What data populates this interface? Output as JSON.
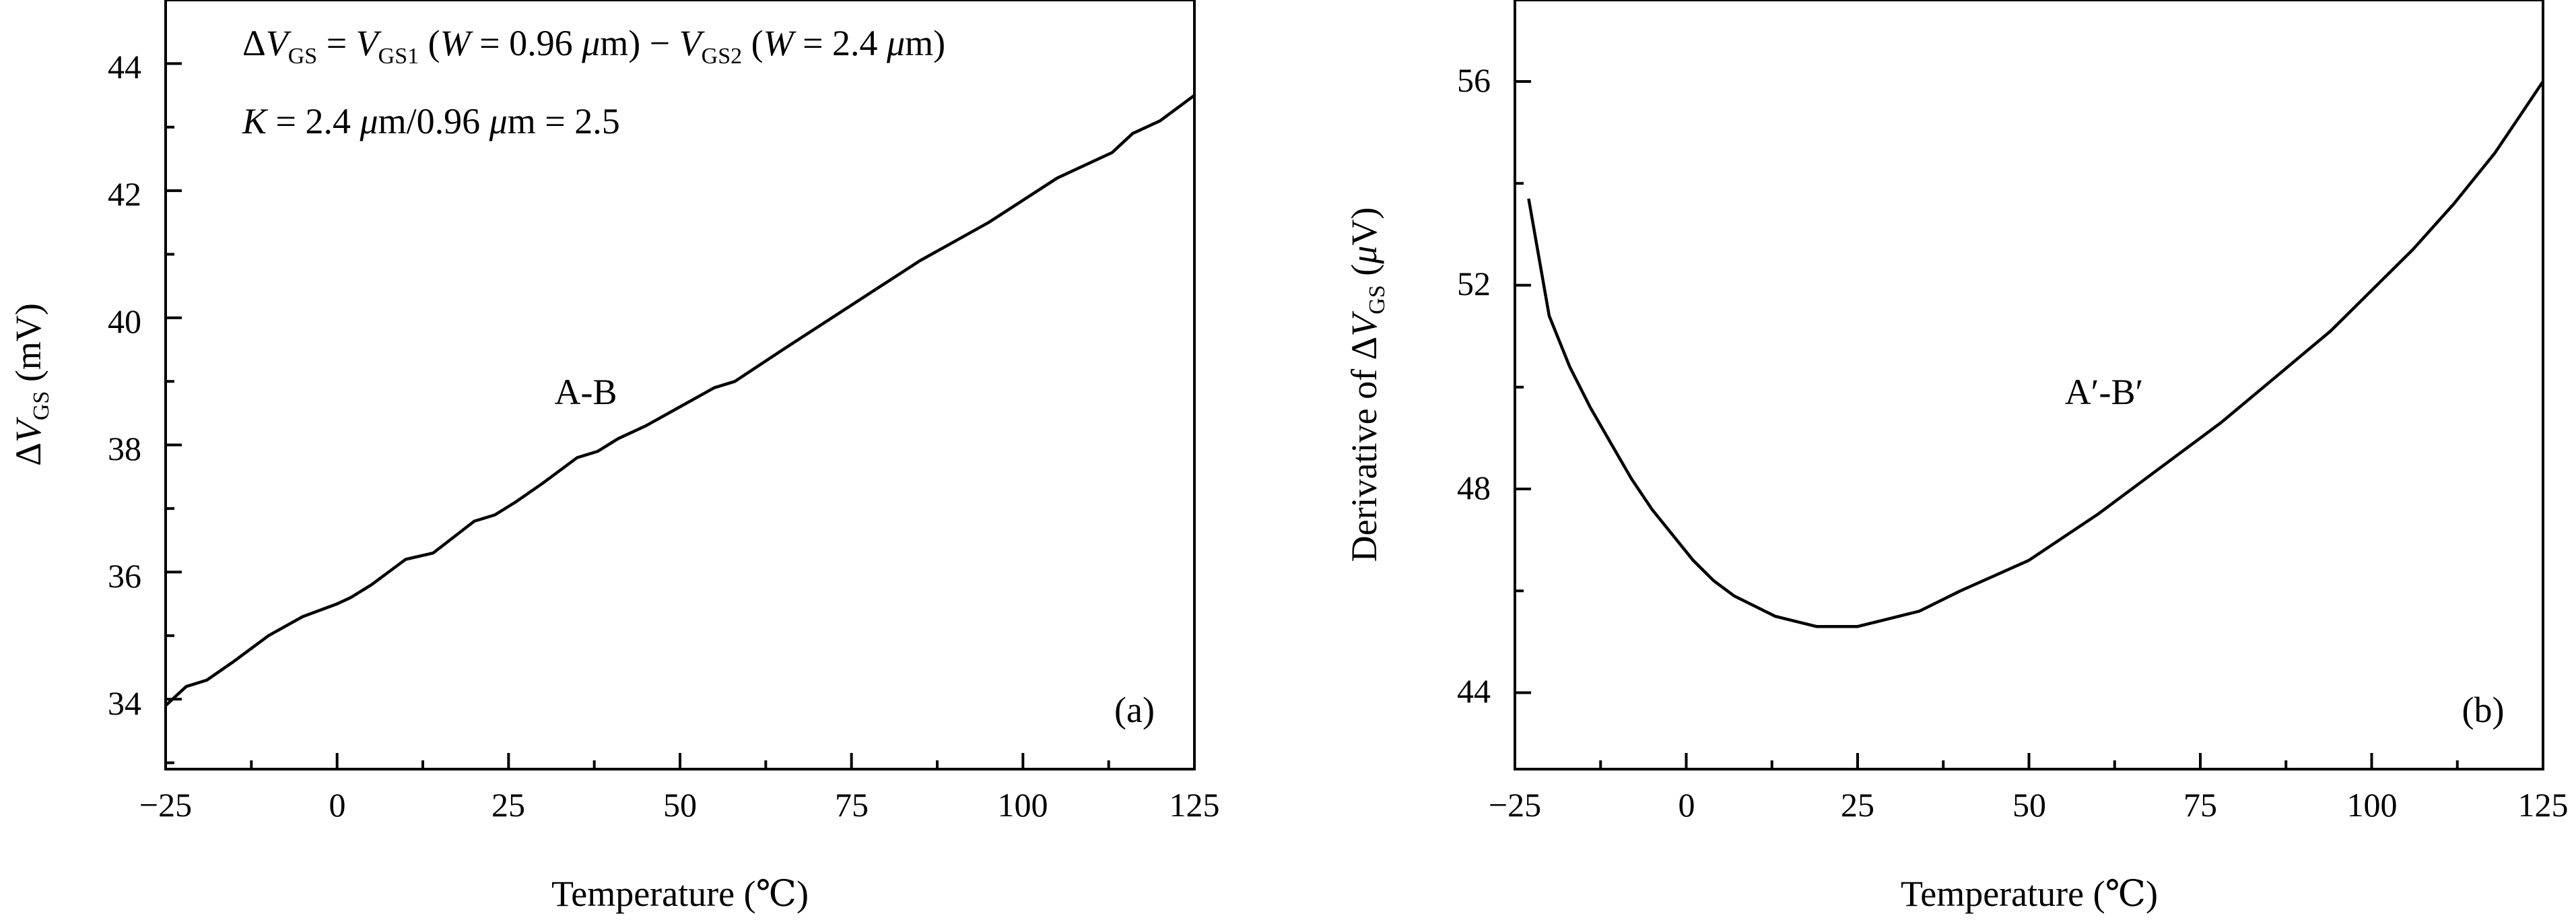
{
  "chart_data": [
    {
      "type": "line",
      "panel_label": "(a)",
      "ylabel": "ΔVGS (mV)",
      "xlabel": "Temperature (℃)",
      "xlim": [
        -25,
        125
      ],
      "ylim": [
        32.9,
        45.0
      ],
      "xticks": [
        -25,
        0,
        25,
        50,
        75,
        100,
        125
      ],
      "yticks": [
        34,
        36,
        38,
        40,
        42,
        44
      ],
      "annotations": [
        "ΔVGS = VGS1 (W = 0.96 μm) − VGS2 (W = 2.4 μm)",
        "K = 2.4 μm/0.96 μm = 2.5"
      ],
      "series": [
        {
          "name": "A-B",
          "x": [
            -25,
            -22,
            -19,
            -15,
            -10,
            -5,
            0,
            2,
            5,
            10,
            14,
            20,
            23,
            26,
            30,
            35,
            38,
            41,
            45,
            50,
            55,
            58,
            65,
            75,
            85,
            95,
            105,
            113,
            116,
            120,
            125
          ],
          "y": [
            33.9,
            34.2,
            34.3,
            34.6,
            35.0,
            35.3,
            35.5,
            35.6,
            35.8,
            36.2,
            36.3,
            36.8,
            36.9,
            37.1,
            37.4,
            37.8,
            37.9,
            38.1,
            38.3,
            38.6,
            38.9,
            39.0,
            39.5,
            40.2,
            40.9,
            41.5,
            42.2,
            42.6,
            42.9,
            43.1,
            43.5
          ]
        }
      ]
    },
    {
      "type": "line",
      "panel_label": "(b)",
      "ylabel": "Derivative of ΔVGS (μV)",
      "xlabel": "Temperature (℃)",
      "xlim": [
        -25,
        125
      ],
      "ylim": [
        42.5,
        57.6
      ],
      "xticks": [
        -25,
        0,
        25,
        50,
        75,
        100,
        125
      ],
      "yticks": [
        44,
        48,
        52,
        56
      ],
      "series": [
        {
          "name": "A′-B′",
          "x": [
            -23,
            -20,
            -17,
            -14,
            -11,
            -8,
            -5,
            -2,
            1,
            4,
            7,
            10,
            13,
            16,
            19,
            22,
            25,
            28,
            31,
            34,
            40,
            50,
            60,
            70,
            78,
            86,
            94,
            100,
            106,
            112,
            118,
            122,
            125
          ],
          "y": [
            53.7,
            51.4,
            50.4,
            49.6,
            48.9,
            48.2,
            47.6,
            47.1,
            46.6,
            46.2,
            45.9,
            45.7,
            45.5,
            45.4,
            45.3,
            45.3,
            45.3,
            45.4,
            45.5,
            45.6,
            46.0,
            46.6,
            47.5,
            48.5,
            49.3,
            50.2,
            51.1,
            51.9,
            52.7,
            53.6,
            54.6,
            55.4,
            56.0
          ]
        }
      ]
    }
  ],
  "text": {
    "panel_a": {
      "y_tick_labels": [
        "34",
        "36",
        "38",
        "40",
        "42",
        "44"
      ],
      "x_tick_labels": [
        "−25",
        "0",
        "25",
        "50",
        "75",
        "100",
        "125"
      ],
      "ylabel": {
        "delta": "Δ",
        "var": "V",
        "sub": "GS",
        "unit": " (mV)"
      },
      "xlabel": "Temperature (℃)",
      "series_label": "A-B",
      "panel_tag": "(a)",
      "anno1": {
        "p1": "Δ",
        "v1": "V",
        "s1": "GS",
        "p2": " = ",
        "v2": "V",
        "s2": "GS1",
        "p3": " (",
        "w1": "W",
        "p4": " = 0.96 ",
        "mu1": "μ",
        "p5": "m) − ",
        "v3": "V",
        "s3": "GS2",
        "p6": " (",
        "w2": "W",
        "p7": " = 2.4 ",
        "mu2": "μ",
        "p8": "m)"
      },
      "anno2": {
        "k": "K",
        "p1": " = 2.4 ",
        "mu1": "μ",
        "p2": "m/0.96 ",
        "mu2": "μ",
        "p3": "m = 2.5"
      }
    },
    "panel_b": {
      "y_tick_labels": [
        "44",
        "48",
        "52",
        "56"
      ],
      "x_tick_labels": [
        "−25",
        "0",
        "25",
        "50",
        "75",
        "100",
        "125"
      ],
      "ylabel": {
        "prefix": "Derivative of Δ",
        "var": "V",
        "sub": "GS",
        "p1": " (",
        "mu": "μ",
        "unit": "V)"
      },
      "xlabel": "Temperature (℃)",
      "series_label": "A′-B′",
      "panel_tag": "(b)"
    }
  }
}
